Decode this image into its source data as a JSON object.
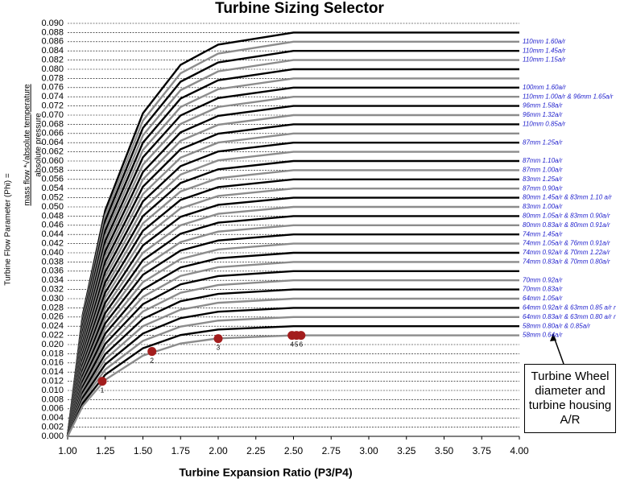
{
  "chart_data": {
    "type": "line",
    "title": "Turbine Sizing Selector",
    "x_label": "Turbine Expansion Ratio (P3/P4)",
    "y_label": "Turbine Flow Parameter (Phi) =",
    "y_label_numerator": "mass flow  *√absolute temperature",
    "y_label_denominator": "absolute pressure",
    "annotation": "Turbine Wheel diameter and turbine housing A/R",
    "xlim": [
      1.0,
      4.0
    ],
    "ylim": [
      0,
      0.09
    ],
    "grid": true,
    "xticks": [
      {
        "value": 1,
        "label": "1.00"
      },
      {
        "value": 1.25,
        "label": "1.25"
      },
      {
        "value": 1.5,
        "label": "1.50"
      },
      {
        "value": 1.75,
        "label": "1.75"
      },
      {
        "value": 2,
        "label": "2.00"
      },
      {
        "value": 2.25,
        "label": "2.25"
      },
      {
        "value": 2.5,
        "label": "2.50"
      },
      {
        "value": 2.75,
        "label": "2.75"
      },
      {
        "value": 3,
        "label": "3.00"
      },
      {
        "value": 3.25,
        "label": "3.25"
      },
      {
        "value": 3.5,
        "label": "3.50"
      },
      {
        "value": 3.75,
        "label": "3.75"
      },
      {
        "value": 4,
        "label": "4.00"
      }
    ],
    "yticks": [
      {
        "value": 0,
        "label": "0.000"
      },
      {
        "value": 0.002,
        "label": "0.002"
      },
      {
        "value": 0.004,
        "label": "0.004"
      },
      {
        "value": 0.006,
        "label": "0.006"
      },
      {
        "value": 0.008,
        "label": "0.008"
      },
      {
        "value": 0.01,
        "label": "0.010"
      },
      {
        "value": 0.012,
        "label": "0.012"
      },
      {
        "value": 0.014,
        "label": "0.014"
      },
      {
        "value": 0.016,
        "label": "0.016"
      },
      {
        "value": 0.018,
        "label": "0.018"
      },
      {
        "value": 0.02,
        "label": "0.020"
      },
      {
        "value": 0.022,
        "label": "0.022"
      },
      {
        "value": 0.024,
        "label": "0.024"
      },
      {
        "value": 0.026,
        "label": "0.026"
      },
      {
        "value": 0.028,
        "label": "0.028"
      },
      {
        "value": 0.03,
        "label": "0.030"
      },
      {
        "value": 0.032,
        "label": "0.032"
      },
      {
        "value": 0.034,
        "label": "0.034"
      },
      {
        "value": 0.036,
        "label": "0.036"
      },
      {
        "value": 0.038,
        "label": "0.038"
      },
      {
        "value": 0.04,
        "label": "0.040"
      },
      {
        "value": 0.042,
        "label": "0.042"
      },
      {
        "value": 0.044,
        "label": "0.044"
      },
      {
        "value": 0.046,
        "label": "0.046"
      },
      {
        "value": 0.048,
        "label": "0.048"
      },
      {
        "value": 0.05,
        "label": "0.050"
      },
      {
        "value": 0.052,
        "label": "0.052"
      },
      {
        "value": 0.054,
        "label": "0.054"
      },
      {
        "value": 0.056,
        "label": "0.056"
      },
      {
        "value": 0.058,
        "label": "0.058"
      },
      {
        "value": 0.06,
        "label": "0.060"
      },
      {
        "value": 0.062,
        "label": "0.062"
      },
      {
        "value": 0.064,
        "label": "0.064"
      },
      {
        "value": 0.066,
        "label": "0.066"
      },
      {
        "value": 0.068,
        "label": "0.068"
      },
      {
        "value": 0.07,
        "label": "0.070"
      },
      {
        "value": 0.072,
        "label": "0.072"
      },
      {
        "value": 0.074,
        "label": "0.074"
      },
      {
        "value": 0.076,
        "label": "0.076"
      },
      {
        "value": 0.078,
        "label": "0.078"
      },
      {
        "value": 0.08,
        "label": "0.080"
      },
      {
        "value": 0.082,
        "label": "0.082"
      },
      {
        "value": 0.084,
        "label": "0.084"
      },
      {
        "value": 0.086,
        "label": "0.086"
      },
      {
        "value": 0.088,
        "label": "0.088"
      },
      {
        "value": 0.09,
        "label": "0.090"
      }
    ],
    "x": [
      1.0,
      1.1,
      1.25,
      1.5,
      1.75,
      2.0,
      2.5,
      4.0
    ],
    "series": [
      {
        "color": "#000000",
        "values": [
          0,
          0.0264,
          0.04928,
          0.0704,
          0.08096,
          0.08536,
          0.088,
          0.088
        ]
      },
      {
        "name": "110mm 1.60a/r",
        "color": "#8c8c8c",
        "values": [
          0,
          0.0258,
          0.04816,
          0.0688,
          0.07912,
          0.08342,
          0.086,
          0.086
        ]
      },
      {
        "name": "110mm 1.45a/r",
        "color": "#000000",
        "values": [
          0,
          0.0252,
          0.04704,
          0.0672,
          0.07728,
          0.08148,
          0.084,
          0.084
        ]
      },
      {
        "name": "110mm 1.15a/r",
        "color": "#8c8c8c",
        "values": [
          0,
          0.0246,
          0.04592,
          0.0656,
          0.07544,
          0.07954,
          0.082,
          0.082
        ]
      },
      {
        "color": "#000000",
        "values": [
          0,
          0.024,
          0.0448,
          0.064,
          0.0736,
          0.0776,
          0.08,
          0.08
        ]
      },
      {
        "color": "#8c8c8c",
        "values": [
          0,
          0.0234,
          0.04368,
          0.0624,
          0.07176,
          0.07566,
          0.078,
          0.078
        ]
      },
      {
        "name": "100mm 1.60a/r",
        "color": "#000000",
        "values": [
          0,
          0.0228,
          0.04256,
          0.0608,
          0.06992,
          0.07372,
          0.076,
          0.076
        ]
      },
      {
        "name": "110mm 1.00a/r & 96mm 1.65a/r",
        "color": "#8c8c8c",
        "values": [
          0,
          0.0222,
          0.04144,
          0.0592,
          0.06808,
          0.07178,
          0.074,
          0.074
        ]
      },
      {
        "name": "96mm 1.58a/r",
        "color": "#000000",
        "values": [
          0,
          0.0216,
          0.04032,
          0.0576,
          0.06624,
          0.06984,
          0.072,
          0.072
        ]
      },
      {
        "name": "96mm 1.32a/r",
        "color": "#8c8c8c",
        "values": [
          0,
          0.021,
          0.0392,
          0.056,
          0.0644,
          0.0679,
          0.07,
          0.07
        ]
      },
      {
        "name": "110mm 0.85a/r",
        "color": "#000000",
        "values": [
          0,
          0.0204,
          0.03808,
          0.0544,
          0.06256,
          0.06596,
          0.068,
          0.068
        ]
      },
      {
        "color": "#8c8c8c",
        "values": [
          0,
          0.0198,
          0.03696,
          0.0528,
          0.06072,
          0.06402,
          0.066,
          0.066
        ]
      },
      {
        "name": "87mm 1.25a/r",
        "color": "#000000",
        "values": [
          0,
          0.0192,
          0.03584,
          0.0512,
          0.05888,
          0.06208,
          0.064,
          0.064
        ]
      },
      {
        "color": "#8c8c8c",
        "values": [
          0,
          0.0186,
          0.03472,
          0.0496,
          0.05704,
          0.06014,
          0.062,
          0.062
        ]
      },
      {
        "name": "87mm 1.10a/r",
        "color": "#000000",
        "values": [
          0,
          0.018,
          0.0336,
          0.048,
          0.0552,
          0.0582,
          0.06,
          0.06
        ]
      },
      {
        "name": "87mm 1.00a/r",
        "color": "#8c8c8c",
        "values": [
          0,
          0.0174,
          0.03248,
          0.0464,
          0.05336,
          0.05626,
          0.058,
          0.058
        ]
      },
      {
        "name": "83mm 1.25a/r",
        "color": "#000000",
        "values": [
          0,
          0.0168,
          0.03136,
          0.0448,
          0.05152,
          0.05432,
          0.056,
          0.056
        ]
      },
      {
        "name": "87mm 0.90a/r",
        "color": "#8c8c8c",
        "values": [
          0,
          0.0162,
          0.03024,
          0.0432,
          0.04968,
          0.05238,
          0.054,
          0.054
        ]
      },
      {
        "name": "80mm 1.45a/r & 83mm 1.10 a/r",
        "color": "#000000",
        "values": [
          0,
          0.0156,
          0.02912,
          0.0416,
          0.04784,
          0.05044,
          0.052,
          0.052
        ]
      },
      {
        "name": "83mm 1.00a/r",
        "color": "#8c8c8c",
        "values": [
          0,
          0.015,
          0.028,
          0.04,
          0.046,
          0.0485,
          0.05,
          0.05
        ]
      },
      {
        "name": "80mm 1.05a/r & 83mm 0.90a/r",
        "color": "#000000",
        "values": [
          0,
          0.0144,
          0.02688,
          0.0384,
          0.04416,
          0.04656,
          0.048,
          0.048
        ]
      },
      {
        "name": "80mm 0.83a/r & 80mm 0.91a/r",
        "color": "#8c8c8c",
        "values": [
          0,
          0.0138,
          0.02576,
          0.0368,
          0.04232,
          0.04462,
          0.046,
          0.046
        ]
      },
      {
        "name": "74mm 1.45a/r",
        "color": "#000000",
        "values": [
          0,
          0.0132,
          0.02464,
          0.0352,
          0.04048,
          0.04268,
          0.044,
          0.044
        ]
      },
      {
        "name": "74mm 1.05a/r & 76mm 0.91a/r",
        "color": "#8c8c8c",
        "values": [
          0,
          0.0126,
          0.02352,
          0.0336,
          0.03864,
          0.04074,
          0.042,
          0.042
        ]
      },
      {
        "name": "74mm 0.92a/r & 70mm 1.22a/r",
        "color": "#000000",
        "values": [
          0,
          0.012,
          0.0224,
          0.032,
          0.0368,
          0.0388,
          0.04,
          0.04
        ]
      },
      {
        "name": "74mm 0.83a/r & 70mm 0.80a/r",
        "color": "#8c8c8c",
        "values": [
          0,
          0.0114,
          0.02128,
          0.0304,
          0.03496,
          0.03686,
          0.038,
          0.038
        ]
      },
      {
        "color": "#000000",
        "values": [
          0,
          0.0108,
          0.02016,
          0.0288,
          0.03312,
          0.03492,
          0.036,
          0.036
        ]
      },
      {
        "name": "70mm 0.92a/r",
        "color": "#8c8c8c",
        "values": [
          0,
          0.0102,
          0.01904,
          0.0272,
          0.03128,
          0.03298,
          0.034,
          0.034
        ]
      },
      {
        "name": "70mm 0.83a/r",
        "color": "#000000",
        "values": [
          0,
          0.0096,
          0.01792,
          0.0256,
          0.02944,
          0.03104,
          0.032,
          0.032
        ]
      },
      {
        "name": "64mm 1.05a/r",
        "color": "#8c8c8c",
        "values": [
          0,
          0.009,
          0.0168,
          0.024,
          0.0276,
          0.0291,
          0.03,
          0.03
        ]
      },
      {
        "name": "64mm 0.92a/r & 63mm 0.85 a/r r",
        "color": "#000000",
        "values": [
          0,
          0.0084,
          0.01568,
          0.0224,
          0.02576,
          0.02716,
          0.028,
          0.028
        ]
      },
      {
        "name": "64mm 0.83a/r & 63mm 0.80 a/r r",
        "color": "#8c8c8c",
        "values": [
          0,
          0.0078,
          0.01456,
          0.0208,
          0.02392,
          0.02522,
          0.026,
          0.026
        ]
      },
      {
        "name": "58mm 0.80a/r & 0.85a/r",
        "color": "#000000",
        "values": [
          0,
          0.0072,
          0.01344,
          0.0192,
          0.02208,
          0.02328,
          0.024,
          0.024
        ]
      },
      {
        "name": "58mm 0.64a/r",
        "color": "#8c8c8c",
        "values": [
          0,
          0.0066,
          0.01232,
          0.0176,
          0.02024,
          0.02134,
          0.022,
          0.022
        ]
      }
    ],
    "points": {
      "color": "#a31d1d",
      "x": [
        1.23,
        1.56,
        2.0,
        2.49,
        2.52,
        2.55
      ],
      "y": [
        0.012,
        0.0185,
        0.0213,
        0.022,
        0.022,
        0.022
      ],
      "labels": [
        "1",
        "2",
        "3",
        "4",
        "5",
        "6"
      ]
    }
  }
}
